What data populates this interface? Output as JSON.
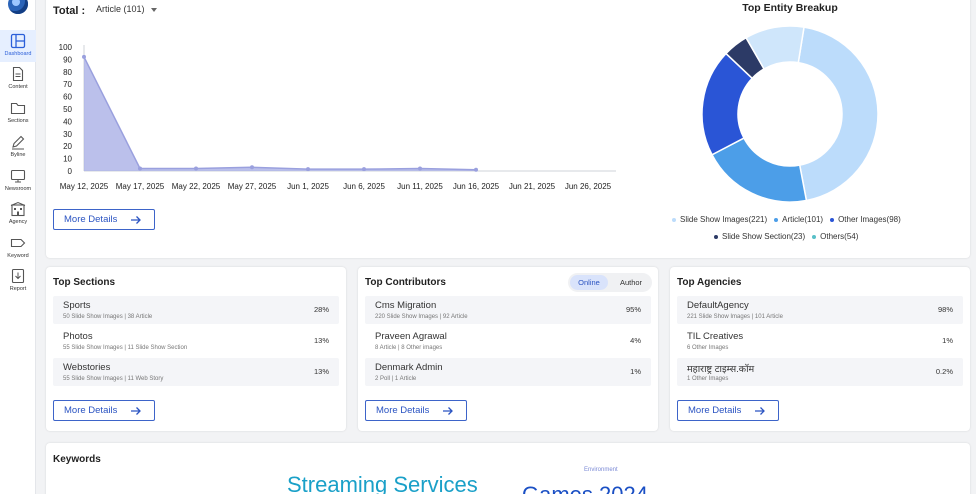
{
  "sidebar": {
    "items": [
      {
        "label": "Dashboard",
        "icon": "dashboard-icon"
      },
      {
        "label": "Content",
        "icon": "document-icon"
      },
      {
        "label": "Sections",
        "icon": "folder-icon"
      },
      {
        "label": "Byline",
        "icon": "pen-icon"
      },
      {
        "label": "Newsroom",
        "icon": "monitor-icon"
      },
      {
        "label": "Agency",
        "icon": "building-icon"
      },
      {
        "label": "Keyword",
        "icon": "tag-icon"
      },
      {
        "label": "Report",
        "icon": "report-icon"
      }
    ]
  },
  "total": {
    "label": "Total :",
    "selected": "Article (101)"
  },
  "chart_data": {
    "type": "area",
    "x": [
      "May 12, 2025",
      "May 17, 2025",
      "May 22, 2025",
      "May 27, 2025",
      "Jun 1, 2025",
      "Jun 6, 2025",
      "Jun 11, 2025",
      "Jun 16, 2025",
      "Jun 21, 2025",
      "Jun 26, 2025"
    ],
    "ylim": [
      0,
      100
    ],
    "yticks": [
      0,
      10,
      20,
      30,
      40,
      50,
      60,
      70,
      80,
      90,
      100
    ],
    "series": [
      {
        "values": [
          92,
          2,
          2,
          3,
          1.5,
          1.5,
          2,
          1,
          null,
          null
        ],
        "color": "#aab0e6"
      }
    ],
    "grid": false
  },
  "more_details_label": "More Details",
  "entity_breakup": {
    "title": "Top Entity Breakup",
    "slices": [
      {
        "label": "Slide Show Images(221)",
        "value": 221,
        "color": "#bcdcfb"
      },
      {
        "label": "Article(101)",
        "value": 101,
        "color": "#4c9ee8"
      },
      {
        "label": "Other Images(98)",
        "value": 98,
        "color": "#2a55d6"
      },
      {
        "label": "Slide Show Section(23)",
        "value": 23,
        "color": "#2c3a66"
      },
      {
        "label": "Others(54)",
        "value": 54,
        "color": "#cfe6fb"
      }
    ]
  },
  "top_sections": {
    "title": "Top Sections",
    "rows": [
      {
        "name": "Sports",
        "sub": "50 Slide Show Images | 38 Article",
        "pct": "28%"
      },
      {
        "name": "Photos",
        "sub": "55 Slide Show Images | 11 Slide Show Section",
        "pct": "13%"
      },
      {
        "name": "Webstories",
        "sub": "55 Slide Show Images | 11 Web Story",
        "pct": "13%"
      }
    ]
  },
  "top_contributors": {
    "title": "Top Contributors",
    "toggle": [
      "Online",
      "Author"
    ],
    "rows": [
      {
        "name": "Cms Migration",
        "sub": "220 Slide Show Images | 92 Article",
        "pct": "95%"
      },
      {
        "name": "Praveen Agrawal",
        "sub": "8 Article | 8 Other images",
        "pct": "4%"
      },
      {
        "name": "Denmark Admin",
        "sub": "2 Poll | 1 Article",
        "pct": "1%"
      }
    ]
  },
  "top_agencies": {
    "title": "Top Agencies",
    "rows": [
      {
        "name": "DefaultAgency",
        "sub": "221 Slide Show Images | 101 Article",
        "pct": "98%"
      },
      {
        "name": "TIL Creatives",
        "sub": "6 Other Images",
        "pct": "1%"
      },
      {
        "name": "महाराष्ट्र टाइम्स.कॉम",
        "sub": "1 Other Images",
        "pct": "0.2%"
      }
    ]
  },
  "keywords": {
    "title": "Keywords",
    "words": [
      "Environment",
      "Streaming Services",
      "Games 2024"
    ]
  }
}
